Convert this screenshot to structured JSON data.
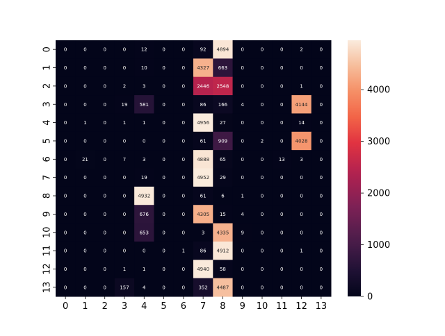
{
  "chart_data": {
    "type": "heatmap",
    "x_labels": [
      "0",
      "1",
      "2",
      "3",
      "4",
      "5",
      "6",
      "7",
      "8",
      "9",
      "10",
      "11",
      "12",
      "13"
    ],
    "y_labels": [
      "0",
      "1",
      "2",
      "3",
      "4",
      "5",
      "6",
      "7",
      "8",
      "9",
      "10",
      "11",
      "12",
      "13"
    ],
    "values": [
      [
        0,
        0,
        0,
        0,
        12,
        0,
        0,
        92,
        4894,
        0,
        0,
        0,
        2,
        0
      ],
      [
        0,
        0,
        0,
        0,
        10,
        0,
        0,
        4327,
        663,
        0,
        0,
        0,
        0,
        0
      ],
      [
        0,
        0,
        0,
        2,
        3,
        0,
        0,
        2446,
        2548,
        0,
        0,
        0,
        1,
        0
      ],
      [
        0,
        0,
        0,
        19,
        581,
        0,
        0,
        86,
        166,
        4,
        0,
        0,
        4144,
        0
      ],
      [
        0,
        1,
        0,
        1,
        1,
        0,
        0,
        4956,
        27,
        0,
        0,
        0,
        14,
        0
      ],
      [
        0,
        0,
        0,
        0,
        0,
        0,
        0,
        61,
        909,
        0,
        2,
        0,
        4028,
        0
      ],
      [
        0,
        21,
        0,
        7,
        3,
        0,
        0,
        4888,
        65,
        0,
        0,
        13,
        3,
        0
      ],
      [
        0,
        0,
        0,
        0,
        19,
        0,
        0,
        4952,
        29,
        0,
        0,
        0,
        0,
        0
      ],
      [
        0,
        0,
        0,
        0,
        4932,
        0,
        0,
        61,
        6,
        1,
        0,
        0,
        0,
        0
      ],
      [
        0,
        0,
        0,
        0,
        676,
        0,
        0,
        4305,
        15,
        4,
        0,
        0,
        0,
        0
      ],
      [
        0,
        0,
        0,
        0,
        653,
        0,
        0,
        3,
        4335,
        9,
        0,
        0,
        0,
        0
      ],
      [
        0,
        0,
        0,
        0,
        0,
        0,
        1,
        86,
        4912,
        0,
        0,
        0,
        1,
        0
      ],
      [
        0,
        0,
        0,
        1,
        1,
        0,
        0,
        4940,
        58,
        0,
        0,
        0,
        0,
        0
      ],
      [
        0,
        0,
        0,
        157,
        4,
        0,
        0,
        352,
        4487,
        0,
        0,
        0,
        0,
        0
      ]
    ],
    "vmin": 0,
    "vmax": 4956,
    "colormap": "rocket",
    "colorbar_ticks": [
      0,
      1000,
      2000,
      3000,
      4000
    ],
    "title": "",
    "xlabel": "",
    "ylabel": ""
  }
}
